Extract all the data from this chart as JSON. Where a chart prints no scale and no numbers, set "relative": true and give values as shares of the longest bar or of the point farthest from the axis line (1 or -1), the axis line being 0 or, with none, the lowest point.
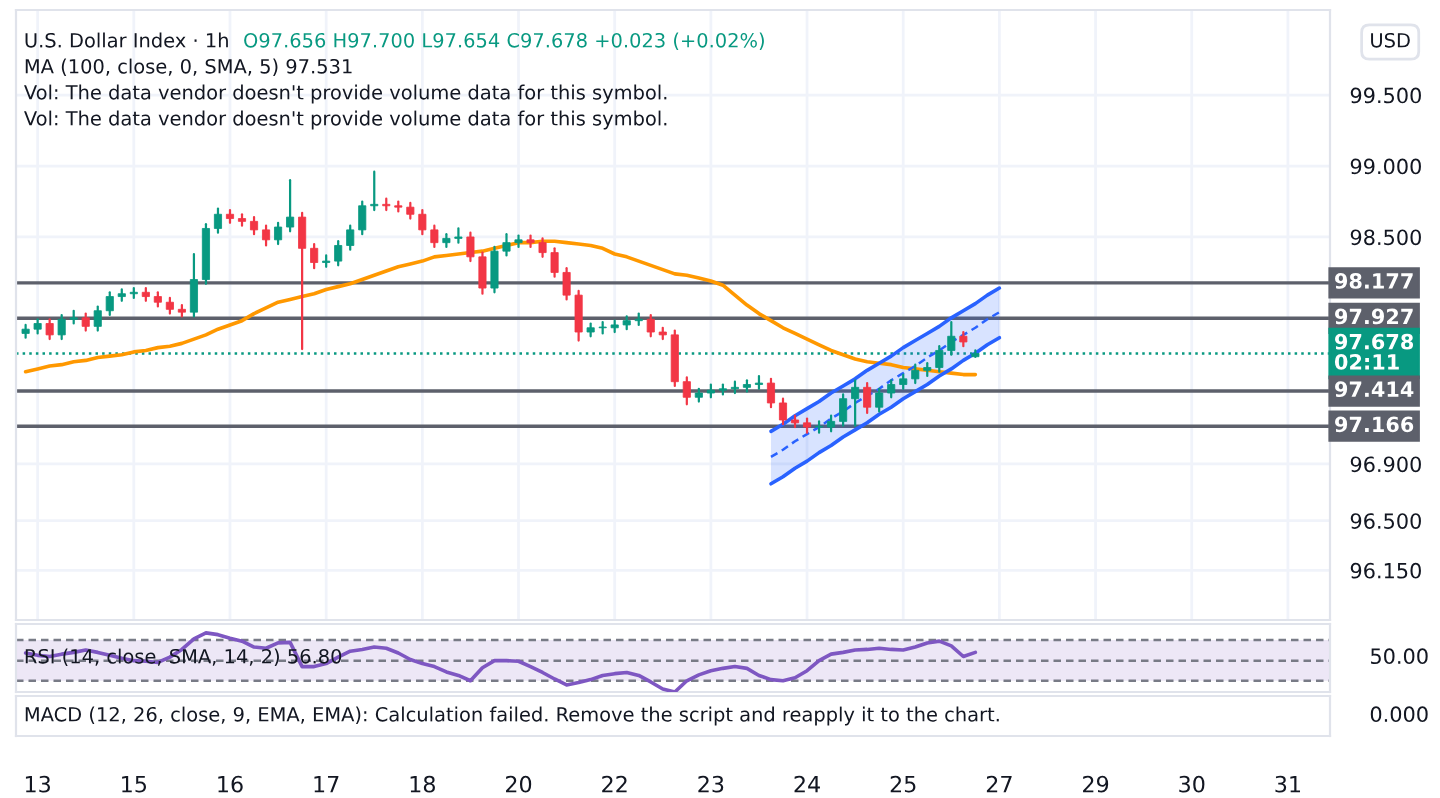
{
  "chart_data": [
    {
      "type": "candlestick",
      "title": "U.S. Dollar Index · 1h",
      "annotations": [
        "O97.656 H97.700 L97.654 C97.678 +0.023 (+0.02%)",
        "MA (100, close, 0, SMA, 5) 97.531",
        "Vol: The data vendor doesn't provide volume data for this symbol.",
        "Vol: The data vendor doesn't provide volume data for this symbol.",
        "USD"
      ],
      "categories": [
        null,
        "13",
        null,
        null,
        null,
        null,
        null,
        null,
        null,
        "15",
        null,
        null,
        null,
        null,
        null,
        null,
        null,
        "16",
        null,
        null,
        null,
        null,
        null,
        null,
        null,
        "17",
        null,
        null,
        null,
        null,
        null,
        null,
        null,
        "18",
        null,
        null,
        null,
        null,
        null,
        null,
        null,
        "20",
        null,
        null,
        null,
        null,
        null,
        null,
        null,
        "22",
        null,
        null,
        null,
        null,
        null,
        null,
        null,
        "23",
        null,
        null,
        null,
        null,
        null,
        null,
        null,
        "24",
        null,
        null,
        null,
        null,
        null,
        null,
        null,
        "25",
        null,
        null,
        null,
        null,
        null,
        null,
        null,
        "27",
        null,
        null,
        null,
        null,
        null,
        null,
        null,
        "29",
        null,
        null,
        null,
        null,
        null,
        null,
        null,
        "30",
        null,
        null,
        null,
        null,
        null,
        null,
        null,
        "31",
        null,
        null,
        null
      ],
      "ohlc": [
        [
          97.82,
          97.88,
          97.79,
          97.85
        ],
        [
          97.85,
          97.92,
          97.82,
          97.89
        ],
        [
          97.89,
          97.92,
          97.78,
          97.81
        ],
        [
          97.81,
          97.95,
          97.78,
          97.92
        ],
        [
          97.92,
          97.98,
          97.89,
          97.93
        ],
        [
          97.93,
          97.96,
          97.84,
          97.87
        ],
        [
          97.87,
          98.01,
          97.84,
          97.98
        ],
        [
          97.98,
          98.11,
          97.95,
          98.08
        ],
        [
          98.08,
          98.13,
          98.05,
          98.1
        ],
        [
          98.1,
          98.14,
          98.07,
          98.11
        ],
        [
          98.11,
          98.14,
          98.05,
          98.08
        ],
        [
          98.08,
          98.11,
          98.01,
          98.04
        ],
        [
          98.04,
          98.07,
          97.96,
          97.99
        ],
        [
          97.99,
          98.02,
          97.94,
          97.97
        ],
        [
          97.97,
          98.38,
          97.94,
          98.2
        ],
        [
          98.2,
          98.59,
          98.17,
          98.56
        ],
        [
          98.56,
          98.7,
          98.53,
          98.66
        ],
        [
          98.66,
          98.69,
          98.6,
          98.63
        ],
        [
          98.63,
          98.66,
          98.58,
          98.61
        ],
        [
          98.61,
          98.64,
          98.52,
          98.55
        ],
        [
          98.55,
          98.58,
          98.44,
          98.48
        ],
        [
          98.48,
          98.6,
          98.45,
          98.57
        ],
        [
          98.57,
          98.9,
          98.54,
          98.64
        ],
        [
          98.64,
          98.67,
          97.71,
          98.42
        ],
        [
          98.42,
          98.45,
          98.28,
          98.32
        ],
        [
          98.32,
          98.37,
          98.29,
          98.33
        ],
        [
          98.33,
          98.47,
          98.3,
          98.44
        ],
        [
          98.44,
          98.58,
          98.41,
          98.55
        ],
        [
          98.55,
          98.75,
          98.52,
          98.72
        ],
        [
          98.72,
          98.96,
          98.69,
          98.73
        ],
        [
          98.73,
          98.77,
          98.69,
          98.72
        ],
        [
          98.72,
          98.75,
          98.68,
          98.71
        ],
        [
          98.71,
          98.74,
          98.63,
          98.66
        ],
        [
          98.66,
          98.69,
          98.52,
          98.55
        ],
        [
          98.55,
          98.58,
          98.43,
          98.46
        ],
        [
          98.46,
          98.52,
          98.43,
          98.49
        ],
        [
          98.49,
          98.56,
          98.46,
          98.5
        ],
        [
          98.5,
          98.53,
          98.33,
          98.36
        ],
        [
          98.36,
          98.39,
          98.1,
          98.14
        ],
        [
          98.14,
          98.43,
          98.11,
          98.4
        ],
        [
          98.4,
          98.52,
          98.37,
          98.46
        ],
        [
          98.46,
          98.51,
          98.43,
          98.48
        ],
        [
          98.48,
          98.51,
          98.43,
          98.46
        ],
        [
          98.46,
          98.49,
          98.36,
          98.39
        ],
        [
          98.39,
          98.42,
          98.22,
          98.25
        ],
        [
          98.25,
          98.28,
          98.06,
          98.09
        ],
        [
          98.09,
          98.12,
          97.77,
          97.83
        ],
        [
          97.83,
          97.89,
          97.8,
          97.86
        ],
        [
          97.86,
          97.9,
          97.82,
          97.86
        ],
        [
          97.86,
          97.91,
          97.83,
          97.88
        ],
        [
          97.88,
          97.94,
          97.85,
          97.91
        ],
        [
          97.91,
          97.96,
          97.88,
          97.92
        ],
        [
          97.92,
          97.95,
          97.8,
          97.83
        ],
        [
          97.83,
          97.86,
          97.78,
          97.81
        ],
        [
          97.81,
          97.84,
          97.45,
          97.48
        ],
        [
          97.48,
          97.51,
          97.32,
          97.37
        ],
        [
          97.37,
          97.43,
          97.34,
          97.4
        ],
        [
          97.4,
          97.46,
          97.37,
          97.42
        ],
        [
          97.42,
          97.46,
          97.39,
          97.43
        ],
        [
          97.43,
          97.48,
          97.4,
          97.44
        ],
        [
          97.44,
          97.49,
          97.41,
          97.46
        ],
        [
          97.46,
          97.52,
          97.43,
          97.47
        ],
        [
          97.47,
          97.5,
          97.3,
          97.33
        ],
        [
          97.33,
          97.36,
          97.18,
          97.21
        ],
        [
          97.21,
          97.24,
          97.16,
          97.19
        ],
        [
          97.19,
          97.22,
          97.12,
          97.16
        ],
        [
          97.16,
          97.2,
          97.12,
          97.16
        ],
        [
          97.16,
          97.24,
          97.13,
          97.2
        ],
        [
          97.2,
          97.39,
          97.17,
          97.36
        ],
        [
          97.36,
          97.49,
          97.17,
          97.44
        ],
        [
          97.44,
          97.47,
          97.26,
          97.3
        ],
        [
          97.3,
          97.43,
          97.27,
          97.4
        ],
        [
          97.4,
          97.49,
          97.37,
          97.46
        ],
        [
          97.46,
          97.53,
          97.43,
          97.5
        ],
        [
          97.5,
          97.6,
          97.47,
          97.56
        ],
        [
          97.56,
          97.61,
          97.52,
          97.58
        ],
        [
          97.58,
          97.73,
          97.55,
          97.7
        ],
        [
          97.7,
          97.9,
          97.67,
          97.8
        ],
        [
          97.8,
          97.83,
          97.73,
          97.76
        ],
        [
          97.656,
          97.7,
          97.654,
          97.678
        ],
        null,
        null,
        null,
        null,
        null,
        null,
        null,
        null,
        null,
        null,
        null,
        null,
        null,
        null,
        null,
        null,
        null,
        null,
        null,
        null,
        null,
        null,
        null,
        null,
        null,
        null,
        null,
        null,
        null
      ],
      "series": [
        {
          "type": "line",
          "color": "#ff9800",
          "values": [
            97.55,
            97.57,
            97.59,
            97.6,
            97.62,
            97.63,
            97.65,
            97.66,
            97.67,
            97.69,
            97.7,
            97.72,
            97.73,
            97.75,
            97.78,
            97.81,
            97.85,
            97.88,
            97.91,
            97.96,
            98.0,
            98.04,
            98.06,
            98.08,
            98.1,
            98.13,
            98.15,
            98.17,
            98.2,
            98.23,
            98.26,
            98.29,
            98.31,
            98.33,
            98.36,
            98.37,
            98.38,
            98.39,
            98.4,
            98.42,
            98.44,
            98.46,
            98.46,
            98.47,
            98.47,
            98.46,
            98.45,
            98.44,
            98.42,
            98.38,
            98.36,
            98.33,
            98.3,
            98.27,
            98.24,
            98.23,
            98.21,
            98.19,
            98.16,
            98.09,
            98.02,
            97.96,
            97.91,
            97.86,
            97.82,
            97.78,
            97.74,
            97.7,
            97.67,
            97.64,
            97.62,
            97.61,
            97.6,
            97.58,
            97.57,
            97.56,
            97.55,
            97.54,
            97.53,
            97.53,
            null,
            null,
            null,
            null,
            null,
            null,
            null,
            null,
            null,
            null,
            null,
            null,
            null,
            null,
            null,
            null,
            null,
            null,
            null,
            null,
            null,
            null,
            null,
            null,
            null,
            null,
            null,
            null,
            null
          ]
        },
        {
          "type": "line",
          "color": "#2962ff",
          "line_style": "solid",
          "values": [
            null,
            null,
            null,
            null,
            null,
            null,
            null,
            null,
            null,
            null,
            null,
            null,
            null,
            null,
            null,
            null,
            null,
            null,
            null,
            null,
            null,
            null,
            null,
            null,
            null,
            null,
            null,
            null,
            null,
            null,
            null,
            null,
            null,
            null,
            null,
            null,
            null,
            null,
            null,
            null,
            null,
            null,
            null,
            null,
            null,
            null,
            null,
            null,
            null,
            null,
            null,
            null,
            null,
            null,
            null,
            null,
            null,
            null,
            null,
            null,
            null,
            null,
            96.76,
            96.81,
            96.87,
            96.92,
            96.98,
            97.03,
            97.09,
            97.14,
            97.19,
            97.25,
            97.3,
            97.36,
            97.41,
            97.46,
            97.52,
            97.57,
            97.63,
            97.68,
            97.74,
            97.79,
            null,
            null,
            null,
            null,
            null,
            null,
            null,
            null,
            null,
            null,
            null,
            null,
            null,
            null,
            null,
            null,
            null,
            null,
            null,
            null,
            null,
            null,
            null,
            null,
            null,
            null,
            null
          ]
        },
        {
          "type": "line",
          "color": "#2962ff",
          "line_style": "solid",
          "values": [
            null,
            null,
            null,
            null,
            null,
            null,
            null,
            null,
            null,
            null,
            null,
            null,
            null,
            null,
            null,
            null,
            null,
            null,
            null,
            null,
            null,
            null,
            null,
            null,
            null,
            null,
            null,
            null,
            null,
            null,
            null,
            null,
            null,
            null,
            null,
            null,
            null,
            null,
            null,
            null,
            null,
            null,
            null,
            null,
            null,
            null,
            null,
            null,
            null,
            null,
            null,
            null,
            null,
            null,
            null,
            null,
            null,
            null,
            null,
            null,
            null,
            null,
            97.13,
            97.18,
            97.24,
            97.29,
            97.34,
            97.4,
            97.45,
            97.5,
            97.56,
            97.61,
            97.66,
            97.72,
            97.77,
            97.82,
            97.87,
            97.93,
            97.98,
            98.03,
            98.09,
            98.14,
            null,
            null,
            null,
            null,
            null,
            null,
            null,
            null,
            null,
            null,
            null,
            null,
            null,
            null,
            null,
            null,
            null,
            null,
            null,
            null,
            null,
            null,
            null,
            null,
            null,
            null,
            null
          ]
        },
        {
          "type": "line",
          "color": "#2962ff",
          "line_style": "dashed",
          "values": [
            null,
            null,
            null,
            null,
            null,
            null,
            null,
            null,
            null,
            null,
            null,
            null,
            null,
            null,
            null,
            null,
            null,
            null,
            null,
            null,
            null,
            null,
            null,
            null,
            null,
            null,
            null,
            null,
            null,
            null,
            null,
            null,
            null,
            null,
            null,
            null,
            null,
            null,
            null,
            null,
            null,
            null,
            null,
            null,
            null,
            null,
            null,
            null,
            null,
            null,
            null,
            null,
            null,
            null,
            null,
            null,
            null,
            null,
            null,
            null,
            null,
            null,
            96.95,
            97.0,
            97.06,
            97.11,
            97.16,
            97.22,
            97.27,
            97.33,
            97.38,
            97.43,
            97.49,
            97.54,
            97.59,
            97.65,
            97.7,
            97.76,
            97.81,
            97.86,
            97.92,
            97.97,
            null,
            null,
            null,
            null,
            null,
            null,
            null,
            null,
            null,
            null,
            null,
            null,
            null,
            null,
            null,
            null,
            null,
            null,
            null,
            null,
            null,
            null,
            null,
            null,
            null,
            null,
            null
          ],
          "lower": [
            null,
            null,
            null,
            null,
            null,
            null,
            null,
            null,
            null,
            null,
            null,
            null,
            null,
            null,
            null,
            null,
            null,
            null,
            null,
            null,
            null,
            null,
            null,
            null,
            null,
            null,
            null,
            null,
            null,
            null,
            null,
            null,
            null,
            null,
            null,
            null,
            null,
            null,
            null,
            null,
            null,
            null,
            null,
            null,
            null,
            null,
            null,
            null,
            null,
            null,
            null,
            null,
            null,
            null,
            null,
            null,
            null,
            null,
            null,
            null,
            null,
            null,
            96.76,
            96.81,
            96.87,
            96.92,
            96.98,
            97.03,
            97.09,
            97.14,
            97.19,
            97.25,
            97.3,
            97.36,
            97.41,
            97.46,
            97.52,
            97.57,
            97.63,
            97.68,
            97.74,
            97.79,
            null,
            null,
            null,
            null,
            null,
            null,
            null,
            null,
            null,
            null,
            null,
            null,
            null,
            null,
            null,
            null,
            null,
            null,
            null,
            null,
            null,
            null,
            null,
            null,
            null,
            null,
            null
          ],
          "upper": [
            null,
            null,
            null,
            null,
            null,
            null,
            null,
            null,
            null,
            null,
            null,
            null,
            null,
            null,
            null,
            null,
            null,
            null,
            null,
            null,
            null,
            null,
            null,
            null,
            null,
            null,
            null,
            null,
            null,
            null,
            null,
            null,
            null,
            null,
            null,
            null,
            null,
            null,
            null,
            null,
            null,
            null,
            null,
            null,
            null,
            null,
            null,
            null,
            null,
            null,
            null,
            null,
            null,
            null,
            null,
            null,
            null,
            null,
            null,
            null,
            null,
            null,
            97.13,
            97.18,
            97.24,
            97.29,
            97.34,
            97.4,
            97.45,
            97.5,
            97.56,
            97.61,
            97.66,
            97.72,
            97.77,
            97.82,
            97.87,
            97.93,
            97.98,
            98.03,
            98.09,
            98.14,
            null,
            null,
            null,
            null,
            null,
            null,
            null,
            null,
            null,
            null,
            null,
            null,
            null,
            null,
            null,
            null,
            null,
            null,
            null,
            null,
            null,
            null,
            null,
            null,
            null,
            null,
            null
          ]
        }
      ],
      "ref_lines": [
        {
          "axis": "y",
          "value": 98.177,
          "label": "98.177",
          "color": "#5d606b",
          "line_style": "solid"
        },
        {
          "axis": "y",
          "value": 97.927,
          "label": "97.927",
          "color": "#5d606b",
          "line_style": "solid"
        },
        {
          "axis": "y",
          "value": 97.678,
          "label": "97.678\n02:11",
          "color": "#089981",
          "line_style": "dotted"
        },
        {
          "axis": "y",
          "value": 97.414,
          "label": "97.414",
          "color": "#5d606b",
          "line_style": "solid"
        },
        {
          "axis": "y",
          "value": 97.166,
          "label": "97.166",
          "color": "#5d606b",
          "line_style": "solid"
        }
      ],
      "ylim": [
        95.8,
        100.1
      ],
      "yticks": [
        {
          "value": 96.15,
          "label": "96.150"
        },
        {
          "value": 96.5,
          "label": "96.500"
        },
        {
          "value": 96.9,
          "label": "96.900"
        },
        {
          "value": 98.5,
          "label": "98.500"
        },
        {
          "value": 99,
          "label": "99.000"
        },
        {
          "value": 99.5,
          "label": "99.500"
        }
      ],
      "grid": true,
      "tick_labels": "y"
    },
    {
      "type": "line",
      "relative": true,
      "annotations": [
        "RSI (14, close, SMA, 14, 2) 56.80",
        "50.00"
      ],
      "categories": [
        null,
        "13",
        null,
        null,
        null,
        null,
        null,
        null,
        null,
        "15",
        null,
        null,
        null,
        null,
        null,
        null,
        null,
        "16",
        null,
        null,
        null,
        null,
        null,
        null,
        null,
        "17",
        null,
        null,
        null,
        null,
        null,
        null,
        null,
        "18",
        null,
        null,
        null,
        null,
        null,
        null,
        null,
        "20",
        null,
        null,
        null,
        null,
        null,
        null,
        null,
        "22",
        null,
        null,
        null,
        null,
        null,
        null,
        null,
        "23",
        null,
        null,
        null,
        null,
        null,
        null,
        null,
        "24",
        null,
        null,
        null,
        null,
        null,
        null,
        null,
        "25",
        null,
        null,
        null,
        null,
        null,
        null,
        null,
        "27",
        null,
        null,
        null,
        null,
        null,
        null,
        null,
        "29",
        null,
        null,
        null,
        null,
        null,
        null,
        null,
        "30",
        null,
        null,
        null,
        null,
        null,
        null,
        null,
        "31",
        null,
        null,
        null
      ],
      "series": [
        {
          "color": "#7e57c2",
          "values": [
            0.66,
            0.62,
            0.6,
            0.64,
            0.67,
            0.71,
            0.67,
            0.62,
            0.57,
            0.53,
            0.52,
            0.5,
            0.59,
            0.72,
            0.9,
            1,
            0.97,
            0.91,
            0.86,
            0.76,
            0.74,
            0.83,
            0.84,
            0.43,
            0.43,
            0.48,
            0.59,
            0.69,
            0.72,
            0.76,
            0.74,
            0.66,
            0.55,
            0.48,
            0.43,
            0.34,
            0.28,
            0.19,
            0.41,
            0.53,
            0.53,
            0.52,
            0.43,
            0.33,
            0.22,
            0.12,
            0.16,
            0.21,
            0.28,
            0.31,
            0.33,
            0.28,
            0.17,
            0.05,
            0,
            0.19,
            0.29,
            0.36,
            0.4,
            0.43,
            0.4,
            0.28,
            0.21,
            0.19,
            0.24,
            0.36,
            0.53,
            0.64,
            0.67,
            0.71,
            0.72,
            0.74,
            0.72,
            0.71,
            0.76,
            0.83,
            0.86,
            0.78,
            0.6,
            0.67,
            null,
            null,
            null,
            null,
            null,
            null,
            null,
            null,
            null,
            null,
            null,
            null,
            null,
            null,
            null,
            null,
            null,
            null,
            null,
            null,
            null,
            null,
            null,
            null,
            null,
            null,
            null,
            null,
            null
          ]
        }
      ],
      "bands": [
        {
          "axis": "y",
          "from": 0.19,
          "to": 0.88,
          "color": "#ede7f6"
        }
      ],
      "ref_lines": [
        {
          "axis": "y",
          "value": 0.88,
          "color": "#787b86",
          "line_style": "dashed"
        },
        {
          "axis": "y",
          "value": 0.53,
          "color": "#787b86",
          "line_style": "dashed"
        },
        {
          "axis": "y",
          "value": 0.19,
          "color": "#787b86",
          "line_style": "dashed"
        }
      ],
      "tick_labels": "x"
    },
    {
      "type": "other",
      "annotations": [
        "MACD (12, 26, close, 9, EMA, EMA): Calculation failed. Remove the script and reapply it to the chart.",
        "0.000"
      ]
    }
  ]
}
